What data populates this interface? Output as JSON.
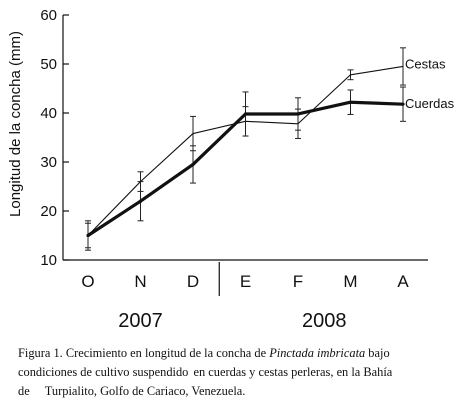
{
  "chart_data": {
    "type": "line",
    "ylabel": "Longitud de la concha (mm)",
    "xlabel": "",
    "categories": [
      "O",
      "N",
      "D",
      "E",
      "F",
      "M",
      "A"
    ],
    "year_groups": [
      {
        "label": "2007",
        "categories": [
          "O",
          "N",
          "D"
        ]
      },
      {
        "label": "2008",
        "categories": [
          "E",
          "F",
          "M",
          "A"
        ]
      }
    ],
    "ylim": [
      10,
      60
    ],
    "yticks": [
      10,
      20,
      30,
      40,
      50,
      60
    ],
    "grid": false,
    "series": [
      {
        "name": "Cestas",
        "style": "thin",
        "values": [
          15,
          26,
          35.8,
          38.3,
          37.8,
          47.8,
          49.5
        ],
        "error": [
          2.5,
          2,
          3.5,
          3,
          3,
          1,
          3.8
        ]
      },
      {
        "name": "Cuerdas",
        "style": "thick",
        "values": [
          15,
          22,
          29.5,
          39.8,
          39.8,
          42.2,
          41.8
        ],
        "error": [
          3,
          4,
          3.8,
          4.5,
          3.3,
          2.5,
          3.5
        ]
      }
    ]
  },
  "caption": {
    "prefix": "Figura 1. Crecimiento en longitud de la concha de ",
    "species": "Pinctada imbricata",
    "line1_end": " bajo",
    "line2a": "condiciones de cultivo suspendido ",
    "line2b": "en cuerdas y cestas perleras, en la Bahía",
    "line3a": "de ",
    "line3b": "Turpialito, Golfo de Cariaco, Venezuela."
  }
}
